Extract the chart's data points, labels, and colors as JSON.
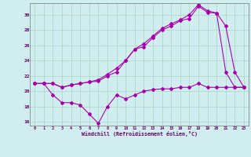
{
  "xlabel": "Windchill (Refroidissement éolien,°C)",
  "xlim": [
    -0.5,
    23.5
  ],
  "ylim": [
    15.5,
    31.5
  ],
  "xticks": [
    0,
    1,
    2,
    3,
    4,
    5,
    6,
    7,
    8,
    9,
    10,
    11,
    12,
    13,
    14,
    15,
    16,
    17,
    18,
    19,
    20,
    21,
    22,
    23
  ],
  "yticks": [
    16,
    18,
    20,
    22,
    24,
    26,
    28,
    30
  ],
  "background_color": "#d0eef0",
  "grid_color": "#b0d8c8",
  "line_color": "#aa00aa",
  "line1_x": [
    0,
    1,
    2,
    3,
    4,
    5,
    6,
    7,
    8,
    9,
    10,
    11,
    12,
    13,
    14,
    15,
    16,
    17,
    18,
    19,
    20,
    21,
    22,
    23
  ],
  "line1_y": [
    21.0,
    21.0,
    19.5,
    18.5,
    18.5,
    18.2,
    17.0,
    15.8,
    18.0,
    19.5,
    19.0,
    19.5,
    20.0,
    20.2,
    20.3,
    20.3,
    20.5,
    20.5,
    21.0,
    20.5,
    20.5,
    20.5,
    20.5,
    20.5
  ],
  "line2_x": [
    0,
    1,
    2,
    3,
    4,
    5,
    6,
    7,
    8,
    9,
    10,
    11,
    12,
    13,
    14,
    15,
    16,
    17,
    18,
    19,
    20,
    21,
    22,
    23
  ],
  "line2_y": [
    21.0,
    21.0,
    21.0,
    20.5,
    20.8,
    21.0,
    21.2,
    21.5,
    22.2,
    23.0,
    24.0,
    25.5,
    26.2,
    27.2,
    28.2,
    28.8,
    29.3,
    30.0,
    31.3,
    30.5,
    30.2,
    28.5,
    22.5,
    20.5
  ],
  "line3_x": [
    0,
    1,
    2,
    3,
    4,
    5,
    6,
    7,
    8,
    9,
    10,
    11,
    12,
    13,
    14,
    15,
    16,
    17,
    18,
    19,
    20,
    21,
    22,
    23
  ],
  "line3_y": [
    21.0,
    21.0,
    21.0,
    20.5,
    20.8,
    21.0,
    21.2,
    21.3,
    22.0,
    22.5,
    24.0,
    25.5,
    25.8,
    27.0,
    28.0,
    28.5,
    29.2,
    29.5,
    31.1,
    30.3,
    30.2,
    22.5,
    20.5,
    20.5
  ]
}
